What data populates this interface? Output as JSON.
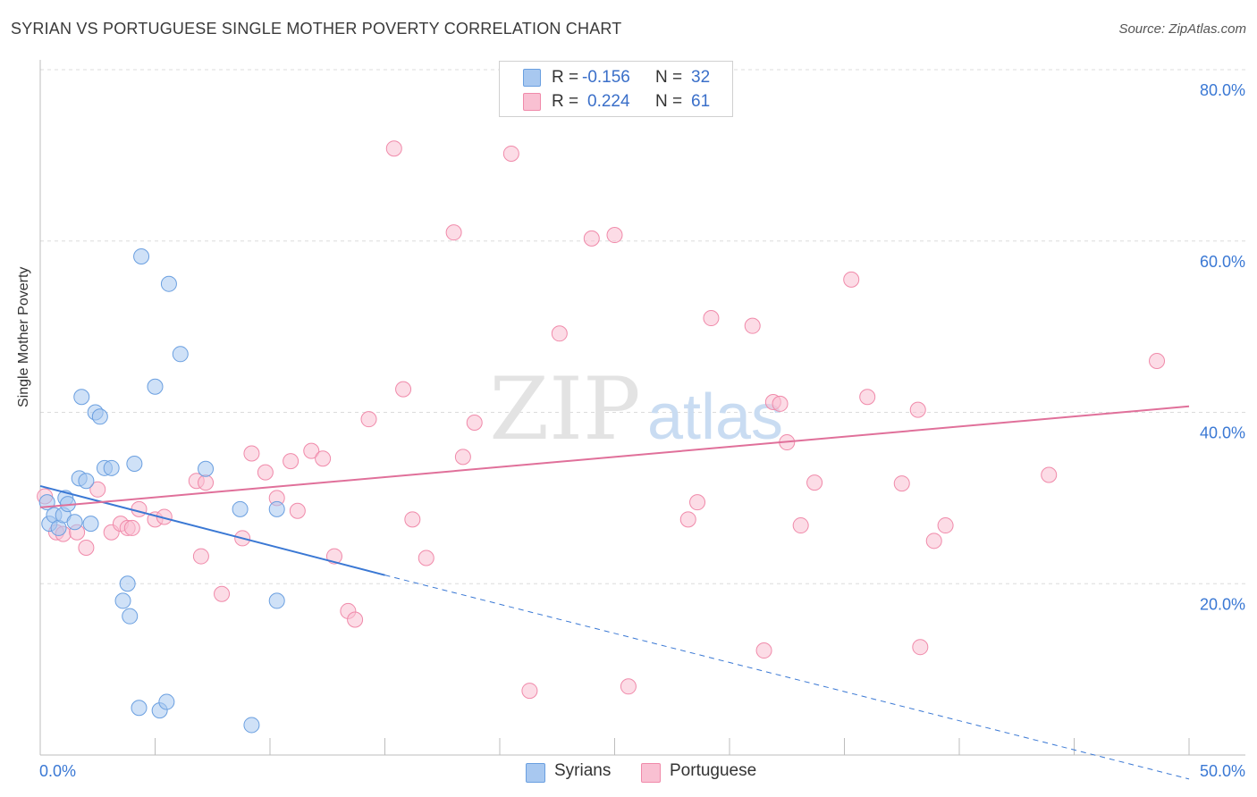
{
  "header": {
    "title": "SYRIAN VS PORTUGUESE SINGLE MOTHER POVERTY CORRELATION CHART",
    "source": "Source: ZipAtlas.com"
  },
  "watermark": {
    "zip": "ZIP",
    "atlas": "atlas"
  },
  "legend": {
    "rows": [
      {
        "r_label": "R =",
        "r_value": "-0.156",
        "n_label": "N =",
        "n_value": "32",
        "color": "#a8c8f0",
        "border": "#6a9fe0"
      },
      {
        "r_label": "R =",
        "r_value": "0.224",
        "n_label": "N =",
        "n_value": "61",
        "color": "#f9c0d2",
        "border": "#f08aaa"
      }
    ]
  },
  "bottom_legend": {
    "syrians": "Syrians",
    "portuguese": "Portuguese"
  },
  "colors": {
    "syrian_fill": "#a8c8f0",
    "syrian_stroke": "#6a9fe0",
    "syrian_line": "#3a78d4",
    "portuguese_fill": "#f9c0d2",
    "portuguese_stroke": "#f08aaa",
    "portuguese_line": "#e0709a",
    "axis_label": "#3a78d4",
    "grid": "#dcdcdc"
  },
  "chart_data": {
    "type": "scatter",
    "title": "SYRIAN VS PORTUGUESE SINGLE MOTHER POVERTY CORRELATION CHART",
    "xlabel": "",
    "ylabel": "Single Mother Poverty",
    "xlim": [
      0,
      50
    ],
    "ylim": [
      0,
      80
    ],
    "x_ticks": [
      0,
      5,
      10,
      15,
      20,
      25,
      30,
      35,
      40,
      45,
      50
    ],
    "x_tick_labels": {
      "0": "0.0%",
      "50": "50.0%"
    },
    "y_ticks": [
      20,
      40,
      60,
      80
    ],
    "y_tick_labels": [
      "20.0%",
      "40.0%",
      "60.0%",
      "80.0%"
    ],
    "grid": true,
    "series": [
      {
        "name": "Syrians",
        "r": -0.156,
        "n": 32,
        "trend": {
          "x0": 0,
          "y0": 31.4,
          "x1": 15,
          "y1": 21.0,
          "dash_to_x": 50,
          "dash_to_y": -2.8
        },
        "points": [
          [
            0.3,
            29.5
          ],
          [
            0.4,
            27
          ],
          [
            0.6,
            28
          ],
          [
            0.8,
            26.5
          ],
          [
            1.0,
            28
          ],
          [
            1.1,
            30
          ],
          [
            1.2,
            29.3
          ],
          [
            1.5,
            27.2
          ],
          [
            1.7,
            32.3
          ],
          [
            1.8,
            41.8
          ],
          [
            2.0,
            32
          ],
          [
            2.2,
            27
          ],
          [
            2.4,
            40
          ],
          [
            2.6,
            39.5
          ],
          [
            2.8,
            33.5
          ],
          [
            3.1,
            33.5
          ],
          [
            3.6,
            18
          ],
          [
            3.8,
            20
          ],
          [
            3.9,
            16.2
          ],
          [
            4.1,
            34
          ],
          [
            4.3,
            5.5
          ],
          [
            4.4,
            58.2
          ],
          [
            5.0,
            43
          ],
          [
            5.2,
            5.2
          ],
          [
            5.5,
            6.2
          ],
          [
            5.6,
            55
          ],
          [
            6.1,
            46.8
          ],
          [
            7.2,
            33.4
          ],
          [
            8.7,
            28.7
          ],
          [
            9.2,
            3.5
          ],
          [
            10.3,
            28.7
          ],
          [
            10.3,
            18
          ]
        ]
      },
      {
        "name": "Portuguese",
        "r": 0.224,
        "n": 61,
        "trend": {
          "x0": 0,
          "y0": 28.9,
          "x1": 50,
          "y1": 40.7
        },
        "points": [
          [
            0.2,
            30.2
          ],
          [
            0.7,
            26
          ],
          [
            1.0,
            25.8
          ],
          [
            1.6,
            26
          ],
          [
            2.0,
            24.2
          ],
          [
            2.5,
            31
          ],
          [
            3.1,
            26
          ],
          [
            3.5,
            27
          ],
          [
            3.8,
            26.5
          ],
          [
            4.0,
            26.5
          ],
          [
            4.3,
            28.7
          ],
          [
            5.0,
            27.5
          ],
          [
            5.4,
            27.8
          ],
          [
            6.8,
            32
          ],
          [
            7.0,
            23.2
          ],
          [
            7.2,
            31.8
          ],
          [
            7.9,
            18.8
          ],
          [
            8.8,
            25.3
          ],
          [
            9.2,
            35.2
          ],
          [
            9.8,
            33
          ],
          [
            10.3,
            30
          ],
          [
            10.9,
            34.3
          ],
          [
            11.2,
            28.5
          ],
          [
            11.8,
            35.5
          ],
          [
            12.3,
            34.6
          ],
          [
            12.8,
            23.2
          ],
          [
            13.4,
            16.8
          ],
          [
            13.7,
            15.8
          ],
          [
            14.3,
            39.2
          ],
          [
            15.4,
            70.8
          ],
          [
            15.8,
            42.7
          ],
          [
            16.2,
            27.5
          ],
          [
            16.8,
            23
          ],
          [
            18.0,
            61
          ],
          [
            18.4,
            34.8
          ],
          [
            18.9,
            38.8
          ],
          [
            20.5,
            70.2
          ],
          [
            21.3,
            7.5
          ],
          [
            22.6,
            49.2
          ],
          [
            24.0,
            60.3
          ],
          [
            25.0,
            60.7
          ],
          [
            25.6,
            8
          ],
          [
            28.2,
            27.5
          ],
          [
            28.6,
            29.5
          ],
          [
            29.2,
            51
          ],
          [
            31.0,
            50.1
          ],
          [
            31.5,
            12.2
          ],
          [
            31.9,
            41.2
          ],
          [
            32.2,
            41
          ],
          [
            32.5,
            36.5
          ],
          [
            33.1,
            26.8
          ],
          [
            33.7,
            31.8
          ],
          [
            35.3,
            55.5
          ],
          [
            36.0,
            41.8
          ],
          [
            37.5,
            31.7
          ],
          [
            38.2,
            40.3
          ],
          [
            38.3,
            12.6
          ],
          [
            38.9,
            25
          ],
          [
            39.4,
            26.8
          ],
          [
            43.9,
            32.7
          ],
          [
            48.6,
            46
          ]
        ]
      }
    ]
  }
}
